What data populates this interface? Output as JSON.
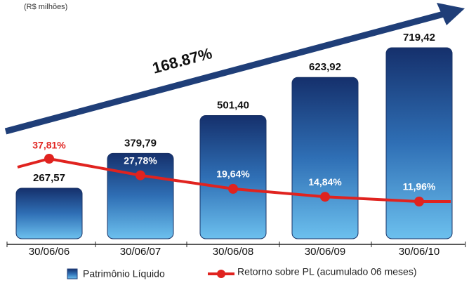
{
  "chart_data": {
    "type": "bar",
    "subtitle": "(R$ milhões)",
    "annotation": "168.87%",
    "categories": [
      "30/06/06",
      "30/06/07",
      "30/06/08",
      "30/06/09",
      "30/06/10"
    ],
    "series": [
      {
        "name": "Patrimônio Líquido",
        "type": "bar",
        "color": "#1f4f9a",
        "values": [
          267.57,
          379.79,
          501.4,
          623.92,
          719.42
        ],
        "value_labels": [
          "267,57",
          "379,79",
          "501,40",
          "623,92",
          "719,42"
        ]
      },
      {
        "name": "Retorno sobre PL (acumulado 06 meses)",
        "type": "line",
        "color": "#e0231f",
        "values": [
          37.81,
          27.78,
          19.64,
          14.84,
          11.96
        ],
        "value_labels": [
          "37,81%",
          "27,78%",
          "19,64%",
          "14,84%",
          "11,96%"
        ]
      }
    ]
  }
}
